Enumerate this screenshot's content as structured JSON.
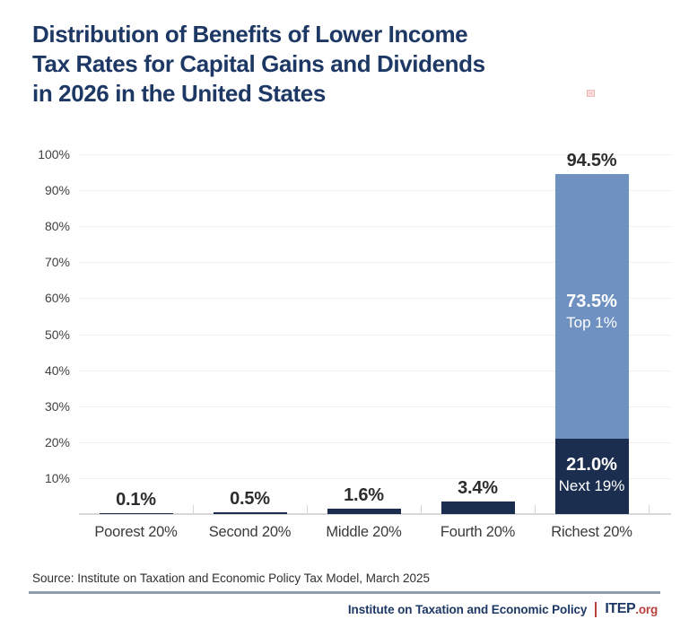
{
  "title": {
    "line1": "Distribution of Benefits of Lower Income",
    "line2": "Tax Rates for Capital Gains and Dividends",
    "line3": "in 2026 in the United States"
  },
  "chart_data": {
    "type": "bar",
    "stacked": true,
    "title": "Distribution of Benefits of Lower Income Tax Rates for Capital Gains and Dividends in 2026 in the United States",
    "xlabel": "",
    "ylabel": "",
    "ylim": [
      0,
      100
    ],
    "grid": true,
    "legend": false,
    "categories": [
      "Poorest 20%",
      "Second 20%",
      "Middle 20%",
      "Fourth 20%",
      "Richest 20%"
    ],
    "values_total": [
      0.1,
      0.5,
      1.6,
      3.4,
      94.5
    ],
    "bar_labels": [
      "0.1%",
      "0.5%",
      "1.6%",
      "3.4%",
      "94.5%"
    ],
    "bars": [
      {
        "category": "Poorest 20%",
        "total": 0.1,
        "label": "0.1%",
        "segments": [
          {
            "name": "All",
            "value": 0.1,
            "color_key": "navy"
          }
        ]
      },
      {
        "category": "Second 20%",
        "total": 0.5,
        "label": "0.5%",
        "segments": [
          {
            "name": "All",
            "value": 0.5,
            "color_key": "navy"
          }
        ]
      },
      {
        "category": "Middle 20%",
        "total": 1.6,
        "label": "1.6%",
        "segments": [
          {
            "name": "All",
            "value": 1.6,
            "color_key": "navy"
          }
        ]
      },
      {
        "category": "Fourth 20%",
        "total": 3.4,
        "label": "3.4%",
        "segments": [
          {
            "name": "All",
            "value": 3.4,
            "color_key": "navy"
          }
        ]
      },
      {
        "category": "Richest 20%",
        "total": 94.5,
        "label": "94.5%",
        "segments": [
          {
            "name": "Next 19%",
            "value": 21.0,
            "color_key": "navy",
            "inner_label_value": "21.0%",
            "inner_label_name": "Next 19%"
          },
          {
            "name": "Top 1%",
            "value": 73.5,
            "color_key": "blue",
            "inner_label_value": "73.5%",
            "inner_label_name": "Top 1%"
          }
        ]
      }
    ],
    "y_axis": {
      "min": 0,
      "max": 100,
      "tick_step": 10,
      "tick_labels": [
        "10%",
        "20%",
        "30%",
        "40%",
        "50%",
        "60%",
        "70%",
        "80%",
        "90%",
        "100%"
      ]
    },
    "colors": {
      "navy": "#1b2e4f",
      "blue": "#6e91c2"
    }
  },
  "artifact": {
    "color": "#fbdada"
  },
  "source": {
    "text": "Source: Institute on Taxation and Economic Policy Tax Model, March 2025"
  },
  "footer": {
    "org": "Institute on Taxation and Economic Policy",
    "pipe": "",
    "logo": "ITEP",
    "logo_suffix": ".org"
  }
}
